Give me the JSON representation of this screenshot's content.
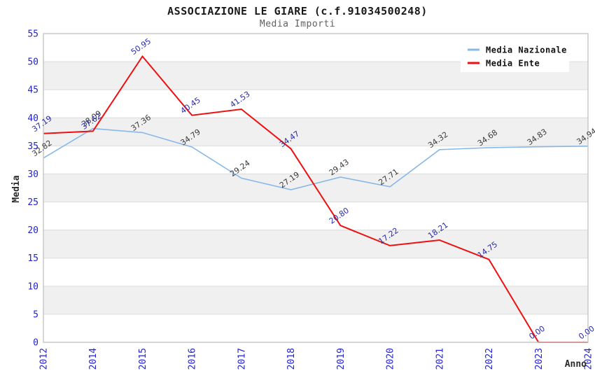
{
  "header": {
    "title": "ASSOCIAZIONE LE GIARE (c.f.91034500248)",
    "subtitle": "Media Importi"
  },
  "chart_data": {
    "type": "line",
    "title": "ASSOCIAZIONE LE GIARE (c.f.91034500248)",
    "subtitle": "Media Importi",
    "x": [
      2012,
      2014,
      2015,
      2016,
      2017,
      2018,
      2019,
      2020,
      2021,
      2022,
      2023,
      2024
    ],
    "series": [
      {
        "name": "Media Nazionale",
        "color": "#88b8e8",
        "label_color": "#3a3a3a",
        "values": [
          32.82,
          38.09,
          37.36,
          34.79,
          29.24,
          27.19,
          29.43,
          27.71,
          34.32,
          34.68,
          34.83,
          34.94
        ]
      },
      {
        "name": "Media Ente",
        "color": "#ee1010",
        "label_color": "#2b2ba8",
        "values": [
          37.19,
          37.62,
          50.95,
          40.45,
          41.53,
          34.47,
          20.8,
          17.22,
          18.21,
          14.75,
          0.0,
          0.0
        ]
      }
    ],
    "xlabel": "Anno",
    "ylabel": "Media",
    "ylim": [
      0,
      55
    ],
    "ytick_step": 5,
    "yticks": [
      0,
      5,
      10,
      15,
      20,
      25,
      30,
      35,
      40,
      45,
      50,
      55
    ],
    "grid": "horizontal-bands",
    "legend_position": "top-right",
    "point_label_decimals": 2
  },
  "colors": {
    "axis_tick_text": "#2323cc",
    "band_fill": "#f0f0f0",
    "gridline": "#dcdcdc",
    "plot_border": "#c9c9c9",
    "axis_title_text": "#2a2a2a",
    "legend_text": "#111111",
    "legend_bg": "#ffffff"
  }
}
